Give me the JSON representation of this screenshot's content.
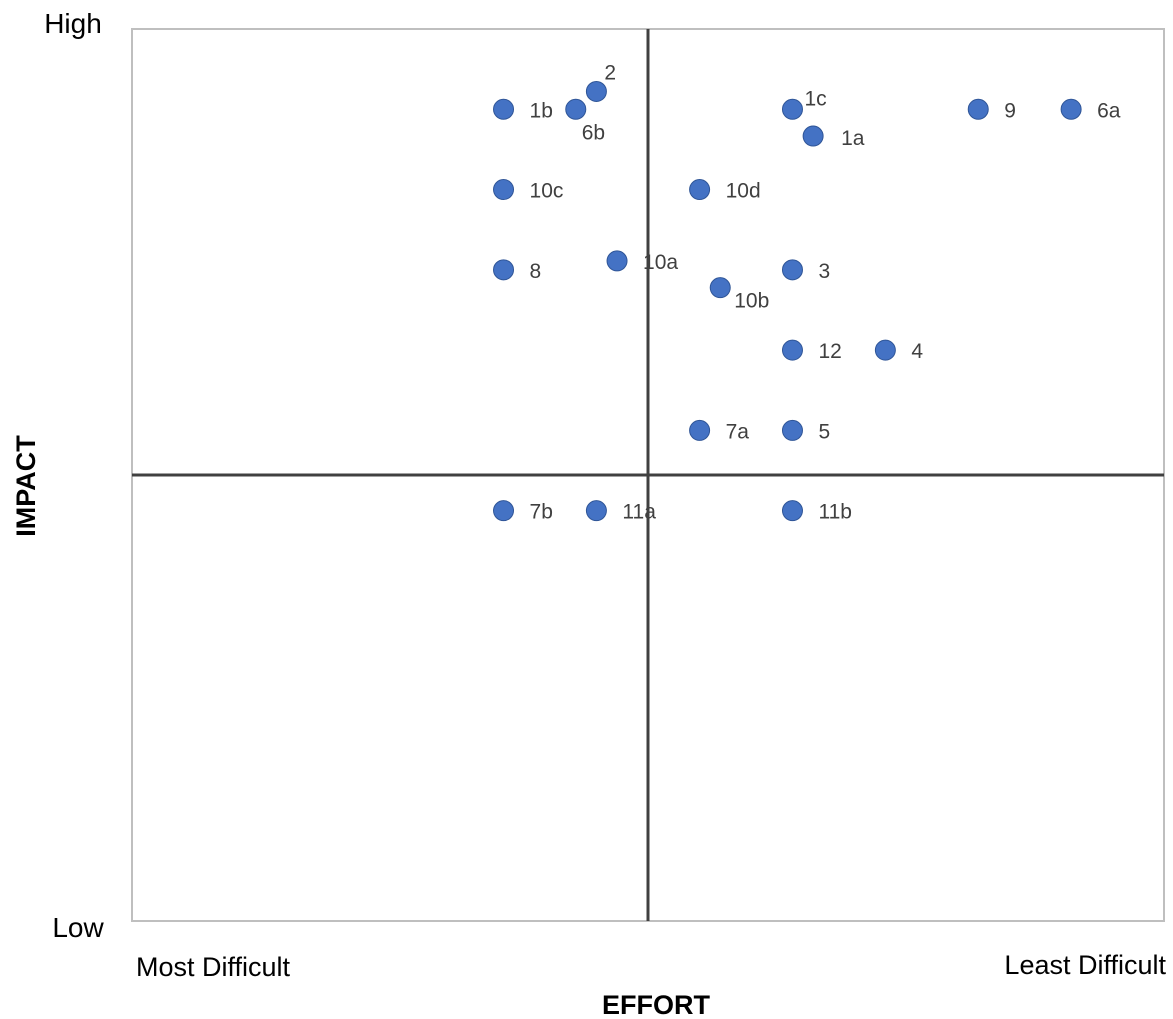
{
  "chart_data": {
    "type": "scatter",
    "title": "",
    "xlabel": "EFFORT",
    "ylabel": "IMPACT",
    "x_scale_labels": [
      "Most Difficult",
      "Least Difficult"
    ],
    "y_scale_labels": [
      "High",
      "Low"
    ],
    "xlim": [
      0,
      10
    ],
    "ylim": [
      0,
      10
    ],
    "quadrant_dividers": {
      "x": 5,
      "y": 5
    },
    "grid": false,
    "colors": {
      "point": "#4472C4",
      "point_stroke": "#2F5597",
      "axis": "#404040",
      "frame": "#bfbfbf"
    },
    "points": [
      {
        "label": "2",
        "x": 4.5,
        "y": 9.3
      },
      {
        "label": "1b",
        "x": 3.6,
        "y": 9.1
      },
      {
        "label": "6b",
        "x": 4.3,
        "y": 9.1
      },
      {
        "label": "1c",
        "x": 6.4,
        "y": 9.1
      },
      {
        "label": "1a",
        "x": 6.6,
        "y": 8.8
      },
      {
        "label": "9",
        "x": 8.2,
        "y": 9.1
      },
      {
        "label": "6a",
        "x": 9.1,
        "y": 9.1
      },
      {
        "label": "10c",
        "x": 3.6,
        "y": 8.2
      },
      {
        "label": "10d",
        "x": 5.5,
        "y": 8.2
      },
      {
        "label": "8",
        "x": 3.6,
        "y": 7.3
      },
      {
        "label": "10a",
        "x": 4.7,
        "y": 7.4
      },
      {
        "label": "3",
        "x": 6.4,
        "y": 7.3
      },
      {
        "label": "10b",
        "x": 5.7,
        "y": 7.1
      },
      {
        "label": "12",
        "x": 6.4,
        "y": 6.4
      },
      {
        "label": "4",
        "x": 7.3,
        "y": 6.4
      },
      {
        "label": "7a",
        "x": 5.5,
        "y": 5.5
      },
      {
        "label": "5",
        "x": 6.4,
        "y": 5.5
      },
      {
        "label": "7b",
        "x": 3.6,
        "y": 4.6
      },
      {
        "label": "11a",
        "x": 4.5,
        "y": 4.6
      },
      {
        "label": "11b",
        "x": 6.4,
        "y": 4.6
      }
    ]
  }
}
